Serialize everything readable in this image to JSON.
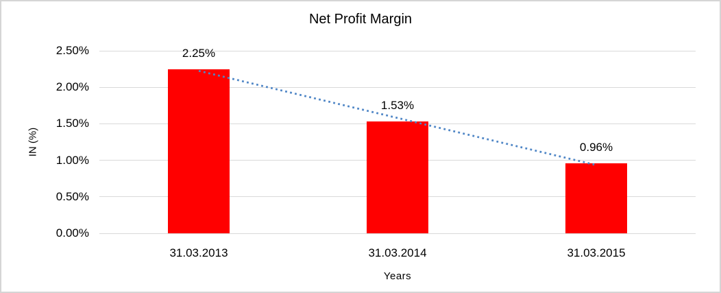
{
  "chart_data": {
    "type": "bar",
    "title": "Net Profit Margin",
    "categories": [
      "31.03.2013",
      "31.03.2014",
      "31.03.2015"
    ],
    "values": [
      2.25,
      1.53,
      0.96
    ],
    "value_labels": [
      "2.25%",
      "1.53%",
      "0.96%"
    ],
    "xlabel": "Years",
    "ylabel": "IN (%)",
    "ylim": [
      0,
      2.5
    ],
    "ytick_values": [
      0,
      0.5,
      1.0,
      1.5,
      2.0,
      2.5
    ],
    "ytick_labels": [
      "0.00%",
      "0.50%",
      "1.00%",
      "1.50%",
      "2.00%",
      "2.50%"
    ],
    "grid": true,
    "legend": "none",
    "bar_color": "#FF0000",
    "gridline_color": "#D9D9D9",
    "text_color": "#000000",
    "trendline": {
      "type": "linear",
      "line_style": "dotted",
      "color": "#4F86C6"
    }
  }
}
